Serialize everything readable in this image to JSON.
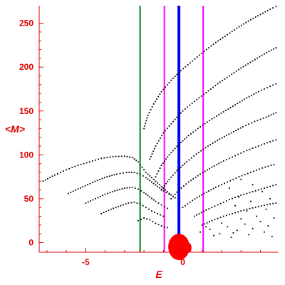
{
  "chart_data": {
    "type": "scatter",
    "title": "",
    "xlabel": "E",
    "ylabel": "<M>",
    "xlim": [
      -7.4,
      4.9
    ],
    "ylim": [
      -11,
      270
    ],
    "grid": false,
    "x_ticks": [
      {
        "value": -5,
        "label": "-5"
      },
      {
        "value": 0,
        "label": "0"
      }
    ],
    "y_ticks": [
      {
        "value": 0,
        "label": "0"
      },
      {
        "value": 50,
        "label": "50"
      },
      {
        "value": 100,
        "label": "100"
      },
      {
        "value": 150,
        "label": "150"
      },
      {
        "value": 200,
        "label": "200"
      },
      {
        "value": 250,
        "label": "250"
      }
    ],
    "colors": {
      "axes": "#e00000",
      "points": "#000000",
      "green_line": "#008000",
      "blue_line": "#0000ee",
      "magenta_line": "#ff00ff",
      "blob": "#ff0000"
    },
    "vertical_lines": [
      {
        "x": -2.2,
        "color": "#008000",
        "width": 2
      },
      {
        "x": -0.95,
        "color": "#ff00ff",
        "width": 2
      },
      {
        "x": -0.2,
        "color": "#0000ee",
        "width": 4
      },
      {
        "x": 1.05,
        "color": "#ff00ff",
        "width": 2
      }
    ],
    "blob": {
      "x": -0.2,
      "y": -5,
      "radius_x": 0.55,
      "radius_y": 15
    },
    "series": [
      {
        "points": [
          [
            -7.2,
            70
          ],
          [
            -6.6,
            77
          ],
          [
            -6.0,
            83
          ],
          [
            -5.4,
            88
          ],
          [
            -4.8,
            92
          ],
          [
            -4.2,
            96
          ],
          [
            -3.6,
            98
          ],
          [
            -3.0,
            98.5
          ],
          [
            -2.6,
            97
          ],
          [
            -2.3,
            92
          ],
          [
            -2.1,
            86
          ],
          [
            -1.9,
            80
          ],
          [
            -1.6,
            74
          ],
          [
            -1.3,
            68
          ],
          [
            -1.0,
            62
          ],
          [
            -0.7,
            56
          ],
          [
            -0.4,
            51
          ]
        ]
      },
      {
        "points": [
          [
            -5.9,
            56
          ],
          [
            -5.4,
            61
          ],
          [
            -4.9,
            66
          ],
          [
            -4.4,
            71
          ],
          [
            -3.9,
            75
          ],
          [
            -3.4,
            78
          ],
          [
            -2.9,
            80
          ],
          [
            -2.5,
            80
          ],
          [
            -2.2,
            78
          ],
          [
            -1.9,
            74
          ],
          [
            -1.6,
            69
          ],
          [
            -1.3,
            64
          ],
          [
            -1.0,
            59
          ],
          [
            -0.7,
            55
          ]
        ]
      },
      {
        "points": [
          [
            -5.0,
            45
          ],
          [
            -4.5,
            50
          ],
          [
            -4.0,
            55
          ],
          [
            -3.5,
            59
          ],
          [
            -3.0,
            62
          ],
          [
            -2.6,
            63
          ],
          [
            -2.3,
            61
          ],
          [
            -2.0,
            57
          ],
          [
            -1.7,
            52
          ],
          [
            -1.4,
            47
          ],
          [
            -1.1,
            43
          ],
          [
            -0.8,
            39
          ]
        ]
      },
      {
        "points": [
          [
            -4.2,
            33
          ],
          [
            -3.7,
            38
          ],
          [
            -3.2,
            42
          ],
          [
            -2.8,
            45
          ],
          [
            -2.5,
            46
          ],
          [
            -2.2,
            44
          ],
          [
            -1.9,
            40
          ],
          [
            -1.6,
            36
          ],
          [
            -1.3,
            33
          ],
          [
            -1.0,
            30
          ]
        ]
      },
      {
        "points": [
          [
            -2.3,
            25
          ],
          [
            -2.0,
            28
          ],
          [
            -1.7,
            26
          ],
          [
            -1.4,
            22
          ],
          [
            -1.1,
            19
          ],
          [
            -0.8,
            17
          ]
        ]
      },
      {
        "points": [
          [
            -2.0,
            130
          ],
          [
            -1.8,
            145
          ],
          [
            -1.5,
            158
          ],
          [
            -1.1,
            172
          ],
          [
            -0.6,
            185
          ],
          [
            -0.1,
            196
          ],
          [
            0.5,
            207
          ],
          [
            1.1,
            218
          ],
          [
            1.7,
            228
          ],
          [
            2.3,
            237
          ],
          [
            2.9,
            246
          ],
          [
            3.5,
            254
          ],
          [
            4.0,
            260
          ],
          [
            4.5,
            266
          ],
          [
            4.8,
            269
          ]
        ]
      },
      {
        "points": [
          [
            -1.7,
            95
          ],
          [
            -1.4,
            110
          ],
          [
            -1.0,
            125
          ],
          [
            -0.5,
            138
          ],
          [
            0.0,
            150
          ],
          [
            0.6,
            161
          ],
          [
            1.2,
            171
          ],
          [
            1.8,
            181
          ],
          [
            2.4,
            190
          ],
          [
            3.0,
            199
          ],
          [
            3.6,
            207
          ],
          [
            4.2,
            215
          ],
          [
            4.8,
            222
          ]
        ]
      },
      {
        "points": [
          [
            -1.4,
            75
          ],
          [
            -1.1,
            88
          ],
          [
            -0.7,
            100
          ],
          [
            -0.2,
            112
          ],
          [
            0.3,
            122
          ],
          [
            0.9,
            132
          ],
          [
            1.5,
            141
          ],
          [
            2.1,
            149
          ],
          [
            2.7,
            157
          ],
          [
            3.3,
            165
          ],
          [
            3.9,
            172
          ],
          [
            4.5,
            178
          ],
          [
            4.8,
            181
          ]
        ]
      },
      {
        "points": [
          [
            -1.1,
            60
          ],
          [
            -0.7,
            72
          ],
          [
            -0.3,
            82
          ],
          [
            0.2,
            92
          ],
          [
            0.7,
            101
          ],
          [
            1.3,
            110
          ],
          [
            1.9,
            118
          ],
          [
            2.5,
            125
          ],
          [
            3.1,
            132
          ],
          [
            3.7,
            138
          ],
          [
            4.3,
            143
          ],
          [
            4.8,
            148
          ]
        ]
      },
      {
        "points": [
          [
            -0.6,
            50
          ],
          [
            -0.2,
            60
          ],
          [
            0.3,
            69
          ],
          [
            0.9,
            78
          ],
          [
            1.5,
            86
          ],
          [
            2.1,
            93
          ],
          [
            2.7,
            99
          ],
          [
            3.3,
            105
          ],
          [
            3.9,
            110
          ],
          [
            4.5,
            115
          ],
          [
            4.8,
            117
          ]
        ]
      },
      {
        "points": [
          [
            0.0,
            40
          ],
          [
            0.5,
            48
          ],
          [
            1.1,
            56
          ],
          [
            1.7,
            63
          ],
          [
            2.3,
            69
          ],
          [
            2.9,
            75
          ],
          [
            3.5,
            80
          ],
          [
            4.1,
            85
          ],
          [
            4.7,
            89
          ]
        ]
      },
      {
        "points": [
          [
            0.6,
            30
          ],
          [
            1.2,
            37
          ],
          [
            1.8,
            43
          ],
          [
            2.4,
            49
          ],
          [
            3.0,
            54
          ],
          [
            3.6,
            58
          ],
          [
            4.2,
            62
          ],
          [
            4.8,
            66
          ]
        ]
      },
      {
        "points": [
          [
            1.0,
            20
          ],
          [
            1.5,
            25
          ],
          [
            2.1,
            30
          ],
          [
            2.7,
            34
          ],
          [
            3.3,
            38
          ],
          [
            3.9,
            41
          ],
          [
            4.5,
            44
          ],
          [
            4.8,
            45
          ]
        ]
      },
      {
        "points": [
          [
            0.9,
            12
          ],
          [
            1.4,
            15
          ],
          [
            1.9,
            10
          ],
          [
            2.3,
            18
          ],
          [
            2.8,
            14
          ],
          [
            3.2,
            21
          ],
          [
            3.6,
            16
          ],
          [
            4.0,
            24
          ],
          [
            4.4,
            19
          ],
          [
            4.7,
            28
          ],
          [
            1.6,
            8
          ],
          [
            2.5,
            6
          ],
          [
            3.4,
            9
          ],
          [
            4.2,
            12
          ],
          [
            4.6,
            7
          ],
          [
            2.0,
            22
          ],
          [
            3.0,
            27
          ],
          [
            3.8,
            30
          ],
          [
            1.2,
            18
          ],
          [
            2.6,
            11
          ]
        ]
      },
      {
        "points": [
          [
            3.0,
            72
          ],
          [
            3.6,
            66
          ],
          [
            4.1,
            58
          ],
          [
            4.5,
            50
          ],
          [
            2.4,
            62
          ],
          [
            2.9,
            52
          ],
          [
            3.5,
            47
          ],
          [
            4.3,
            38
          ],
          [
            3.3,
            36
          ],
          [
            2.7,
            42
          ]
        ]
      }
    ]
  }
}
